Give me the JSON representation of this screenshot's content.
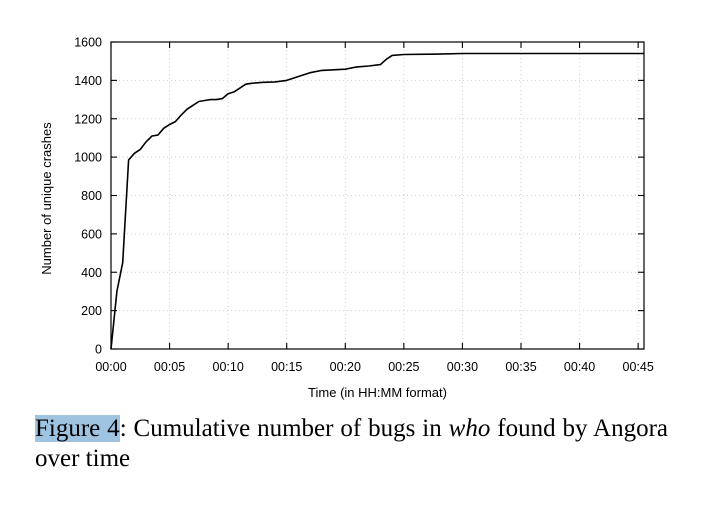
{
  "chart_data": {
    "type": "line",
    "xlabel": "Time (in HH:MM format)",
    "ylabel": "Number of unique crashes",
    "xlim": [
      0,
      45.5
    ],
    "ylim": [
      0,
      1600
    ],
    "x_ticks": [
      0,
      5,
      10,
      15,
      20,
      25,
      30,
      35,
      40,
      45
    ],
    "x_tick_labels": [
      "00:00",
      "00:05",
      "00:10",
      "00:15",
      "00:20",
      "00:25",
      "00:30",
      "00:35",
      "00:40",
      "00:45"
    ],
    "y_ticks": [
      0,
      200,
      400,
      600,
      800,
      1000,
      1200,
      1400,
      1600
    ],
    "y_tick_labels": [
      "0",
      "200",
      "400",
      "600",
      "800",
      "1000",
      "1200",
      "1400",
      "1600"
    ],
    "grid": true,
    "series": [
      {
        "x": [
          0,
          0.5,
          1.0,
          1.5,
          2.0,
          2.5,
          3.0,
          3.5,
          4.0,
          4.5,
          5.0,
          5.5,
          6.0,
          6.5,
          7.0,
          7.5,
          8.0,
          8.5,
          9.0,
          9.5,
          10.0,
          10.5,
          11.0,
          11.5,
          12.0,
          13.0,
          14.0,
          15.0,
          16.0,
          17.0,
          18.0,
          19.0,
          20.0,
          21.0,
          22.0,
          23.0,
          23.5,
          24.0,
          25.0,
          28.0,
          30.0,
          45.5
        ],
        "y": [
          0,
          300,
          450,
          985,
          1020,
          1040,
          1080,
          1110,
          1115,
          1150,
          1170,
          1185,
          1220,
          1250,
          1270,
          1290,
          1295,
          1300,
          1300,
          1305,
          1330,
          1340,
          1360,
          1380,
          1385,
          1390,
          1392,
          1400,
          1420,
          1440,
          1452,
          1455,
          1458,
          1470,
          1475,
          1482,
          1510,
          1530,
          1535,
          1537,
          1540,
          1540
        ]
      }
    ]
  },
  "caption": {
    "label": "Figure 4",
    "text": ": Cumulative number of bugs in ",
    "emphasis": "who",
    "text_end": " found by Angora over time"
  }
}
